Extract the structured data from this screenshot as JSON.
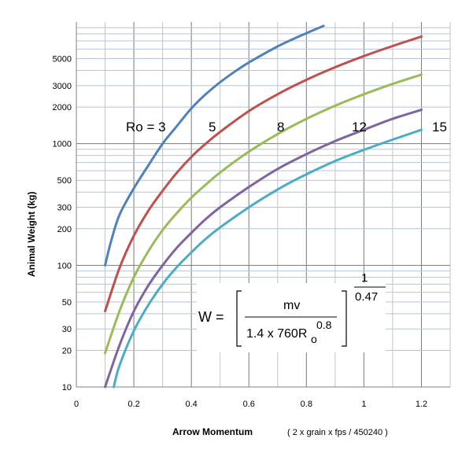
{
  "chart_data": {
    "type": "line",
    "xlabel": "Arrow Momentum",
    "xlabel_note": "( 2 x grain x fps / 450240 )",
    "ylabel": "Animal Weight (kg)",
    "x_scale": "linear",
    "y_scale": "log",
    "xlim": [
      0,
      1.3
    ],
    "ylim": [
      10,
      10000
    ],
    "x_ticks": [
      "0",
      "0.2",
      "0.4",
      "0.6",
      "0.8",
      "1",
      "1.2"
    ],
    "y_ticks": [
      "10",
      "20",
      "30",
      "50",
      "100",
      "200",
      "300",
      "500",
      "1000",
      "2000",
      "3000",
      "5000"
    ],
    "grid": true,
    "series": [
      {
        "name": "Ro = 3",
        "color": "#4f81bd",
        "x": [
          0.1,
          0.12,
          0.15,
          0.2,
          0.25,
          0.3,
          0.35,
          0.4,
          0.45,
          0.5,
          0.55,
          0.6,
          0.7,
          0.8,
          0.86
        ],
        "y": [
          100,
          155,
          260,
          430,
          660,
          1000,
          1400,
          1950,
          2550,
          3200,
          3900,
          4650,
          6300,
          8100,
          9300
        ]
      },
      {
        "name": "5",
        "color": "#c0504d",
        "x": [
          0.1,
          0.15,
          0.2,
          0.25,
          0.3,
          0.35,
          0.4,
          0.45,
          0.5,
          0.6,
          0.7,
          0.8,
          0.9,
          1.0,
          1.1,
          1.2
        ],
        "y": [
          42,
          95,
          175,
          280,
          410,
          580,
          780,
          1000,
          1250,
          1850,
          2550,
          3350,
          4250,
          5250,
          6350,
          7600
        ]
      },
      {
        "name": "8",
        "color": "#9bbb59",
        "x": [
          0.1,
          0.15,
          0.2,
          0.25,
          0.3,
          0.35,
          0.4,
          0.45,
          0.5,
          0.6,
          0.7,
          0.8,
          0.9,
          1.0,
          1.1,
          1.2
        ],
        "y": [
          19,
          42,
          80,
          130,
          195,
          270,
          360,
          460,
          580,
          860,
          1200,
          1600,
          2050,
          2550,
          3100,
          3700
        ]
      },
      {
        "name": "12",
        "color": "#8064a2",
        "x": [
          0.1,
          0.15,
          0.2,
          0.25,
          0.3,
          0.35,
          0.4,
          0.45,
          0.5,
          0.6,
          0.7,
          0.8,
          0.9,
          1.0,
          1.1,
          1.2
        ],
        "y": [
          10,
          22,
          42,
          68,
          100,
          140,
          185,
          240,
          300,
          440,
          620,
          820,
          1050,
          1300,
          1600,
          1900
        ]
      },
      {
        "name": "15",
        "color": "#4bacc6",
        "x": [
          0.13,
          0.15,
          0.2,
          0.25,
          0.3,
          0.35,
          0.4,
          0.45,
          0.5,
          0.6,
          0.7,
          0.8,
          0.9,
          1.0,
          1.1,
          1.2
        ],
        "y": [
          10,
          15,
          29,
          47,
          70,
          97,
          128,
          165,
          205,
          300,
          420,
          560,
          720,
          890,
          1080,
          1300
        ]
      }
    ],
    "ro_labels": [
      "Ro = 3",
      "5",
      "8",
      "12",
      "15"
    ],
    "formula": {
      "lhs": "W =",
      "numerator": "mv",
      "denominator_prefix": "1.4 x 760R",
      "denominator_sub": "o",
      "denominator_sup": "0.8",
      "exponent_numerator": "1",
      "exponent_denominator": "0.47"
    }
  }
}
